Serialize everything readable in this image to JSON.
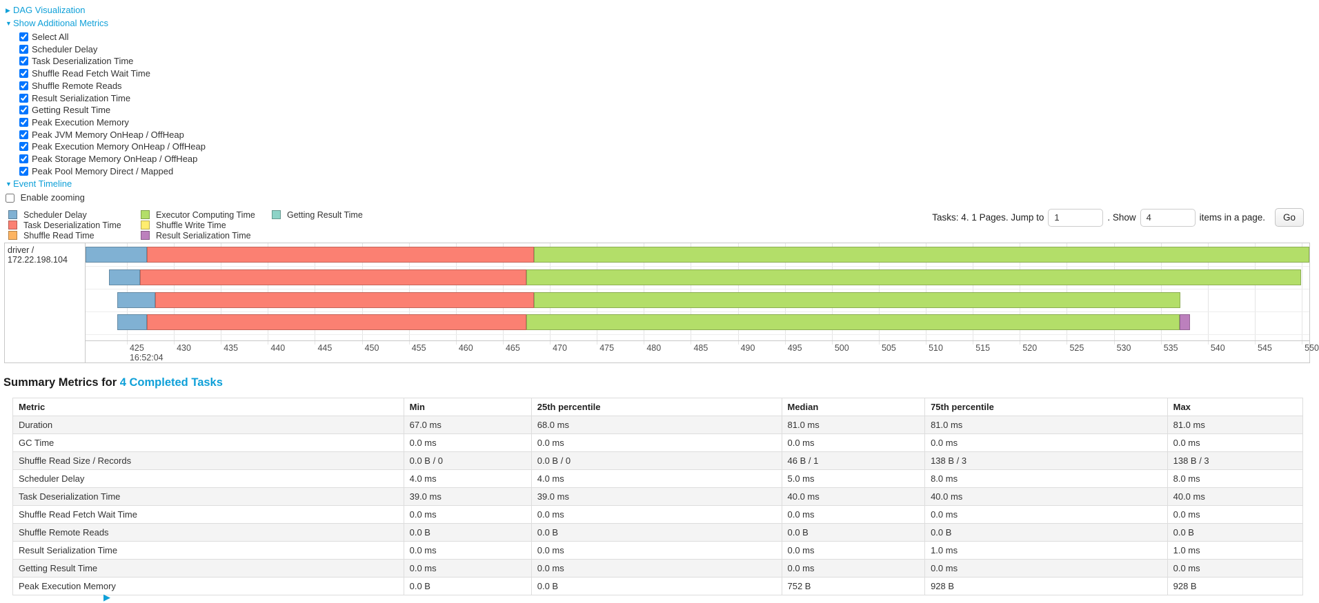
{
  "accent_color": "#0fa0d8",
  "controls": {
    "dag_section": {
      "arrow": "▶",
      "label": "DAG Visualization"
    },
    "metrics_section": {
      "arrow": "▼",
      "label": "Show Additional Metrics",
      "checkboxes": [
        "Select All",
        "Scheduler Delay",
        "Task Deserialization Time",
        "Shuffle Read Fetch Wait Time",
        "Shuffle Remote Reads",
        "Result Serialization Time",
        "Getting Result Time",
        "Peak Execution Memory",
        "Peak JVM Memory OnHeap / OffHeap",
        "Peak Execution Memory OnHeap / OffHeap",
        "Peak Storage Memory OnHeap / OffHeap",
        "Peak Pool Memory Direct / Mapped"
      ],
      "all_checked": true
    },
    "timeline_section": {
      "arrow": "▼",
      "label": "Event Timeline"
    },
    "enable_zooming": {
      "label": "Enable zooming",
      "checked": false
    }
  },
  "pagination": {
    "text_before_jump": "Tasks: 4. 1 Pages. Jump to",
    "jump_value": "1",
    "text_before_show": ". Show",
    "show_value": "4",
    "text_after_show": "items in a page.",
    "go_label": "Go"
  },
  "legend": {
    "columns": [
      [
        {
          "label": "Scheduler Delay",
          "color": "#80B1D3"
        },
        {
          "label": "Task Deserialization Time",
          "color": "#FB8072"
        },
        {
          "label": "Shuffle Read Time",
          "color": "#FDB462"
        }
      ],
      [
        {
          "label": "Executor Computing Time",
          "color": "#B3DE69"
        },
        {
          "label": "Shuffle Write Time",
          "color": "#FFED6F"
        },
        {
          "label": "Result Serialization Time",
          "color": "#BC80BD"
        }
      ],
      [
        {
          "label": "Getting Result Time",
          "color": "#8DD3C7"
        }
      ]
    ]
  },
  "chart_data": {
    "type": "bar",
    "subtype": "horizontal-stacked-task-timeline",
    "group_label": "driver / 172.22.198.104",
    "colors": {
      "Scheduler Delay": "#80B1D3",
      "Task Deserialization Time": "#FB8072",
      "Shuffle Read Time": "#FDB462",
      "Executor Computing Time": "#B3DE69",
      "Shuffle Write Time": "#FFED6F",
      "Result Serialization Time": "#BC80BD",
      "Getting Result Time": "#8DD3C7"
    },
    "x_axis": {
      "start_label": "16:52:04",
      "unit": "milliseconds within second 16:52:04",
      "ticks": [
        425,
        430,
        435,
        440,
        445,
        450,
        455,
        460,
        465,
        470,
        475,
        480,
        485,
        490,
        495,
        500,
        505,
        510,
        515,
        520,
        525,
        530,
        535,
        540,
        545,
        550
      ],
      "tick_step": 5,
      "visible_range": [
        420.6,
        550.8
      ],
      "grid": true
    },
    "tasks": [
      {
        "segments": [
          {
            "name": "Scheduler Delay",
            "start": 420.6,
            "end": 427.1
          },
          {
            "name": "Task Deserialization Time",
            "start": 427.1,
            "end": 468.3
          },
          {
            "name": "Executor Computing Time",
            "start": 468.3,
            "end": 550.8
          }
        ]
      },
      {
        "segments": [
          {
            "name": "Scheduler Delay",
            "start": 423.1,
            "end": 426.4
          },
          {
            "name": "Task Deserialization Time",
            "start": 426.4,
            "end": 467.5
          },
          {
            "name": "Executor Computing Time",
            "start": 467.5,
            "end": 549.9
          }
        ]
      },
      {
        "segments": [
          {
            "name": "Scheduler Delay",
            "start": 424.0,
            "end": 428.0
          },
          {
            "name": "Task Deserialization Time",
            "start": 428.0,
            "end": 468.3
          },
          {
            "name": "Executor Computing Time",
            "start": 468.3,
            "end": 537.1
          }
        ]
      },
      {
        "segments": [
          {
            "name": "Scheduler Delay",
            "start": 424.0,
            "end": 427.1
          },
          {
            "name": "Task Deserialization Time",
            "start": 427.1,
            "end": 467.5
          },
          {
            "name": "Executor Computing Time",
            "start": 467.5,
            "end": 537.0
          },
          {
            "name": "Result Serialization Time",
            "start": 537.0,
            "end": 538.1
          }
        ]
      }
    ]
  },
  "summary": {
    "title_prefix": "Summary Metrics for ",
    "title_link": "4 Completed Tasks",
    "table": {
      "headers": [
        "Metric",
        "Min",
        "25th percentile",
        "Median",
        "75th percentile",
        "Max"
      ],
      "rows": [
        [
          "Duration",
          "67.0 ms",
          "68.0 ms",
          "81.0 ms",
          "81.0 ms",
          "81.0 ms"
        ],
        [
          "GC Time",
          "0.0 ms",
          "0.0 ms",
          "0.0 ms",
          "0.0 ms",
          "0.0 ms"
        ],
        [
          "Shuffle Read Size / Records",
          "0.0 B / 0",
          "0.0 B / 0",
          "46 B / 1",
          "138 B / 3",
          "138 B / 3"
        ],
        [
          "Scheduler Delay",
          "4.0 ms",
          "4.0 ms",
          "5.0 ms",
          "8.0 ms",
          "8.0 ms"
        ],
        [
          "Task Deserialization Time",
          "39.0 ms",
          "39.0 ms",
          "40.0 ms",
          "40.0 ms",
          "40.0 ms"
        ],
        [
          "Shuffle Read Fetch Wait Time",
          "0.0 ms",
          "0.0 ms",
          "0.0 ms",
          "0.0 ms",
          "0.0 ms"
        ],
        [
          "Shuffle Remote Reads",
          "0.0 B",
          "0.0 B",
          "0.0 B",
          "0.0 B",
          "0.0 B"
        ],
        [
          "Result Serialization Time",
          "0.0 ms",
          "0.0 ms",
          "0.0 ms",
          "1.0 ms",
          "1.0 ms"
        ],
        [
          "Getting Result Time",
          "0.0 ms",
          "0.0 ms",
          "0.0 ms",
          "0.0 ms",
          "0.0 ms"
        ],
        [
          "Peak Execution Memory",
          "0.0 B",
          "0.0 B",
          "752 B",
          "928 B",
          "928 B"
        ]
      ],
      "column_widths_pct": [
        30.3,
        9.9,
        19.4,
        11.1,
        18.8,
        10.5
      ]
    }
  }
}
